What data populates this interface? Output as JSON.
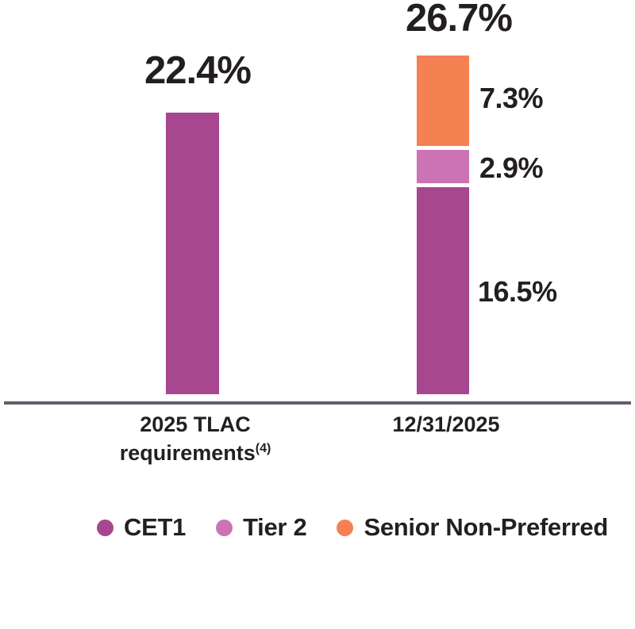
{
  "chart_data": {
    "type": "bar",
    "stacked": true,
    "unit": "%",
    "categories": [
      "2025 TLAC requirements(4)",
      "12/31/2025"
    ],
    "series": [
      {
        "name": "CET1",
        "color": "#a6478f",
        "values": [
          22.4,
          16.5
        ]
      },
      {
        "name": "Tier 2",
        "color": "#cc73b4",
        "values": [
          0,
          2.9
        ]
      },
      {
        "name": "Senior Non-Preferred",
        "color": "#f58052",
        "values": [
          0,
          7.3
        ]
      }
    ],
    "bar_totals": [
      22.4,
      26.7
    ],
    "ylim": [
      0,
      26.7
    ],
    "grid": false,
    "legend_position": "bottom",
    "baseline_color": "#665c6b",
    "text_color": "#231f20"
  },
  "left_bar": {
    "total_label": "22.4%",
    "category_line1": "2025 TLAC",
    "category_line2": "requirements",
    "category_superscript": "(4)"
  },
  "right_bar": {
    "total_label": "26.7%",
    "category": "12/31/2025",
    "segments": [
      {
        "name": "Senior Non-Preferred",
        "label": "7.3%",
        "color": "#f58052"
      },
      {
        "name": "Tier 2",
        "label": "2.9%",
        "color": "#cc73b4"
      },
      {
        "name": "CET1",
        "label": "16.5%",
        "color": "#a6478f"
      }
    ]
  },
  "legend": {
    "items": [
      {
        "label": "CET1",
        "color": "#a6478f"
      },
      {
        "label": "Tier 2",
        "color": "#cc73b4"
      },
      {
        "label": "Senior Non-Preferred",
        "color": "#f58052"
      }
    ]
  }
}
